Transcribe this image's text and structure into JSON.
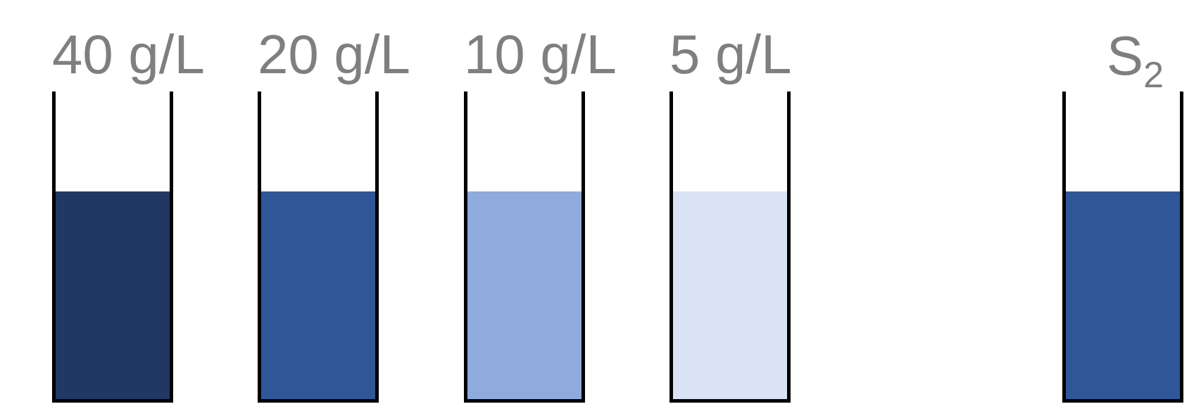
{
  "beakers": [
    {
      "label": "40 g/L",
      "liquid_color": "#213864",
      "fill_fraction": 0.675
    },
    {
      "label": "20 g/L",
      "liquid_color": "#2f5797",
      "fill_fraction": 0.675
    },
    {
      "label": "10 g/L",
      "liquid_color": "#8eabdb",
      "fill_fraction": 0.675
    },
    {
      "label": "5 g/L",
      "liquid_color": "#dae3f3",
      "fill_fraction": 0.675
    },
    {
      "label": "S",
      "label_subscript": "2",
      "liquid_color": "#2f5797",
      "fill_fraction": 0.675
    }
  ]
}
